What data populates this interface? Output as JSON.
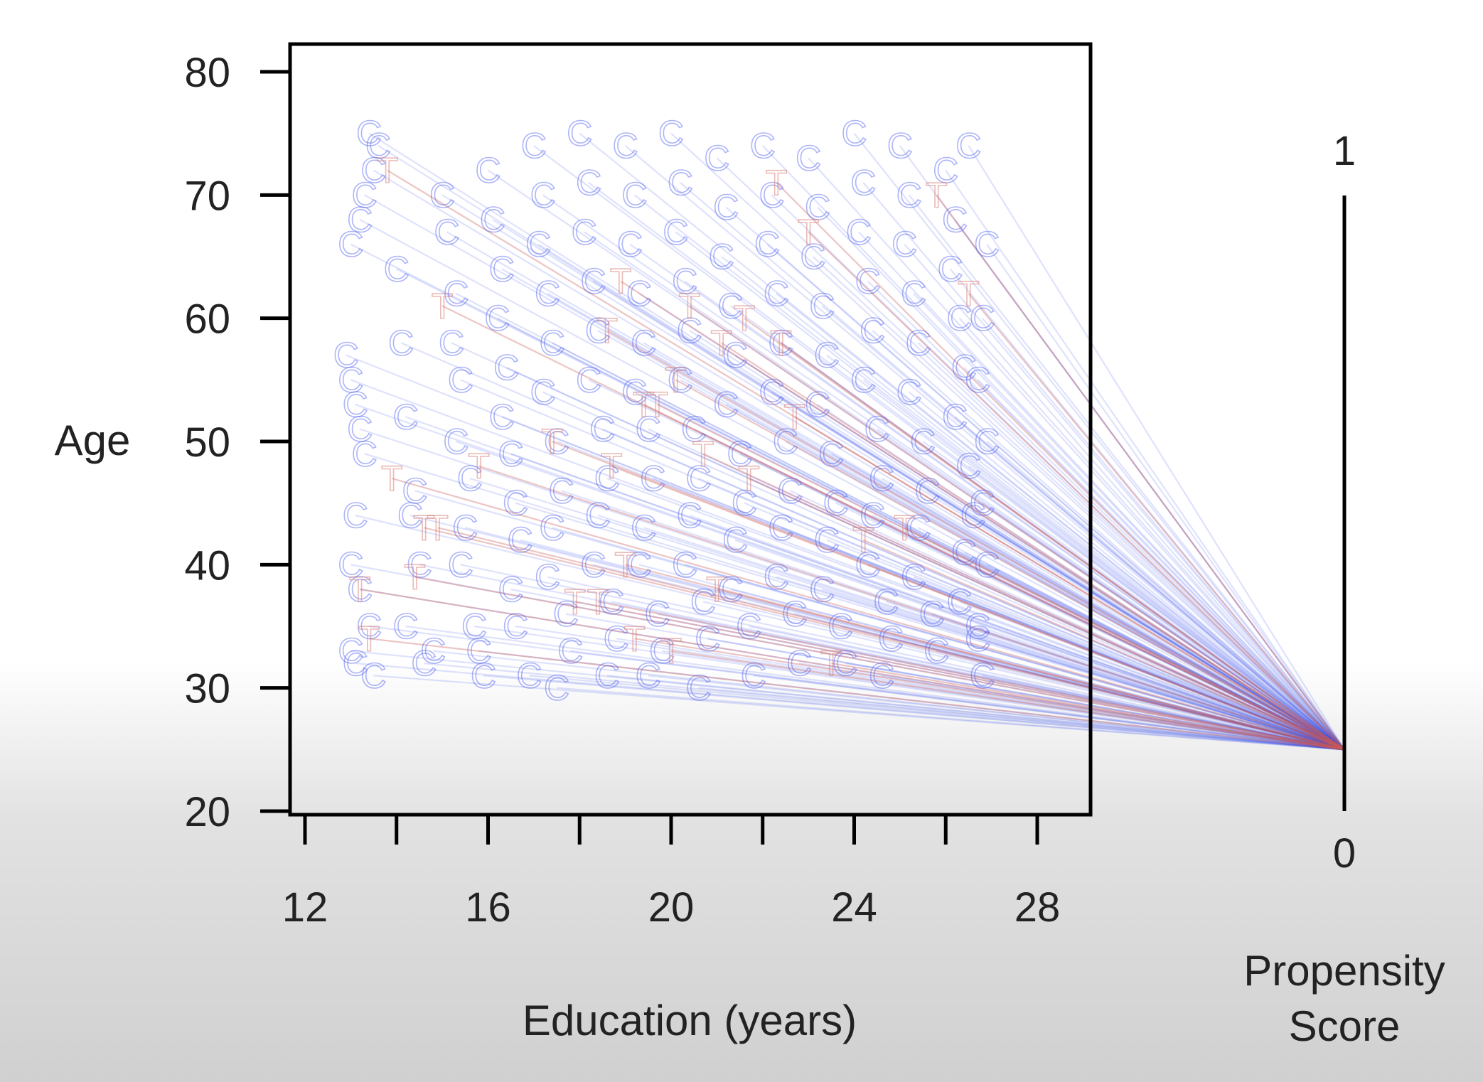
{
  "chart_data": {
    "type": "scatter",
    "title": "",
    "xlabel": "Education (years)",
    "ylabel": "Age",
    "xlim": [
      11.5,
      29.3
    ],
    "ylim": [
      20,
      82
    ],
    "x_ticks": [
      12,
      16,
      20,
      24,
      28
    ],
    "y_ticks": [
      20,
      30,
      40,
      50,
      60,
      70,
      80
    ],
    "grid": false,
    "legend": "none",
    "propensity_axis": {
      "label_lines": [
        "Propensity",
        "Score"
      ],
      "top_label": "1",
      "bottom_label": "0",
      "range": [
        0,
        1
      ]
    },
    "series": [
      {
        "name": "C",
        "marker_letter": "C",
        "color": "#4a5cf0",
        "propensity": 0.1,
        "points": [
          [
            13.4,
            75
          ],
          [
            13.6,
            74
          ],
          [
            13.5,
            72
          ],
          [
            13.3,
            70
          ],
          [
            13.2,
            68
          ],
          [
            13.0,
            66
          ],
          [
            12.9,
            57
          ],
          [
            13.0,
            55
          ],
          [
            13.1,
            53
          ],
          [
            13.2,
            51
          ],
          [
            13.3,
            49
          ],
          [
            13.1,
            44
          ],
          [
            13.0,
            40
          ],
          [
            13.2,
            38
          ],
          [
            13.4,
            35
          ],
          [
            13.0,
            33
          ],
          [
            13.1,
            32
          ],
          [
            13.5,
            31
          ],
          [
            14.0,
            64
          ],
          [
            14.1,
            58
          ],
          [
            14.2,
            52
          ],
          [
            14.4,
            46
          ],
          [
            14.3,
            44
          ],
          [
            14.5,
            40
          ],
          [
            14.2,
            35
          ],
          [
            14.6,
            32
          ],
          [
            14.8,
            33
          ],
          [
            15.0,
            70
          ],
          [
            15.1,
            67
          ],
          [
            15.3,
            62
          ],
          [
            15.2,
            58
          ],
          [
            15.4,
            55
          ],
          [
            15.3,
            50
          ],
          [
            15.6,
            47
          ],
          [
            15.5,
            43
          ],
          [
            15.4,
            40
          ],
          [
            15.7,
            35
          ],
          [
            15.8,
            33
          ],
          [
            15.9,
            31
          ],
          [
            16.0,
            72
          ],
          [
            16.1,
            68
          ],
          [
            16.3,
            64
          ],
          [
            16.2,
            60
          ],
          [
            16.4,
            56
          ],
          [
            16.3,
            52
          ],
          [
            16.5,
            49
          ],
          [
            16.6,
            45
          ],
          [
            16.7,
            42
          ],
          [
            16.5,
            38
          ],
          [
            16.6,
            35
          ],
          [
            16.9,
            31
          ],
          [
            17.0,
            74
          ],
          [
            17.2,
            70
          ],
          [
            17.1,
            66
          ],
          [
            17.3,
            62
          ],
          [
            17.4,
            58
          ],
          [
            17.2,
            54
          ],
          [
            17.5,
            50
          ],
          [
            17.6,
            46
          ],
          [
            17.4,
            43
          ],
          [
            17.3,
            39
          ],
          [
            17.7,
            36
          ],
          [
            17.8,
            33
          ],
          [
            17.5,
            30
          ],
          [
            18.0,
            75
          ],
          [
            18.2,
            71
          ],
          [
            18.1,
            67
          ],
          [
            18.3,
            63
          ],
          [
            18.4,
            59
          ],
          [
            18.2,
            55
          ],
          [
            18.5,
            51
          ],
          [
            18.6,
            47
          ],
          [
            18.4,
            44
          ],
          [
            18.3,
            40
          ],
          [
            18.7,
            37
          ],
          [
            18.8,
            34
          ],
          [
            18.6,
            31
          ],
          [
            19.0,
            74
          ],
          [
            19.2,
            70
          ],
          [
            19.1,
            66
          ],
          [
            19.3,
            62
          ],
          [
            19.4,
            58
          ],
          [
            19.2,
            54
          ],
          [
            19.5,
            51
          ],
          [
            19.6,
            47
          ],
          [
            19.4,
            43
          ],
          [
            19.3,
            40
          ],
          [
            19.7,
            36
          ],
          [
            19.8,
            33
          ],
          [
            19.5,
            31
          ],
          [
            20.0,
            75
          ],
          [
            20.2,
            71
          ],
          [
            20.1,
            67
          ],
          [
            20.3,
            63
          ],
          [
            20.4,
            59
          ],
          [
            20.2,
            55
          ],
          [
            20.5,
            51
          ],
          [
            20.6,
            47
          ],
          [
            20.4,
            44
          ],
          [
            20.3,
            40
          ],
          [
            20.7,
            37
          ],
          [
            20.8,
            34
          ],
          [
            20.6,
            30
          ],
          [
            21.0,
            73
          ],
          [
            21.2,
            69
          ],
          [
            21.1,
            65
          ],
          [
            21.3,
            61
          ],
          [
            21.4,
            57
          ],
          [
            21.2,
            53
          ],
          [
            21.5,
            49
          ],
          [
            21.6,
            45
          ],
          [
            21.4,
            42
          ],
          [
            21.3,
            38
          ],
          [
            21.7,
            35
          ],
          [
            21.8,
            31
          ],
          [
            22.0,
            74
          ],
          [
            22.2,
            70
          ],
          [
            22.1,
            66
          ],
          [
            22.3,
            62
          ],
          [
            22.4,
            58
          ],
          [
            22.2,
            54
          ],
          [
            22.5,
            50
          ],
          [
            22.6,
            46
          ],
          [
            22.4,
            43
          ],
          [
            22.3,
            39
          ],
          [
            22.7,
            36
          ],
          [
            22.8,
            32
          ],
          [
            23.0,
            73
          ],
          [
            23.2,
            69
          ],
          [
            23.1,
            65
          ],
          [
            23.3,
            61
          ],
          [
            23.4,
            57
          ],
          [
            23.2,
            53
          ],
          [
            23.5,
            49
          ],
          [
            23.6,
            45
          ],
          [
            23.4,
            42
          ],
          [
            23.3,
            38
          ],
          [
            23.7,
            35
          ],
          [
            23.8,
            32
          ],
          [
            24.0,
            75
          ],
          [
            24.2,
            71
          ],
          [
            24.1,
            67
          ],
          [
            24.3,
            63
          ],
          [
            24.4,
            59
          ],
          [
            24.2,
            55
          ],
          [
            24.5,
            51
          ],
          [
            24.6,
            47
          ],
          [
            24.4,
            44
          ],
          [
            24.3,
            40
          ],
          [
            24.7,
            37
          ],
          [
            24.8,
            34
          ],
          [
            24.6,
            31
          ],
          [
            25.0,
            74
          ],
          [
            25.2,
            70
          ],
          [
            25.1,
            66
          ],
          [
            25.3,
            62
          ],
          [
            25.4,
            58
          ],
          [
            25.2,
            54
          ],
          [
            25.5,
            50
          ],
          [
            25.6,
            46
          ],
          [
            25.4,
            43
          ],
          [
            25.3,
            39
          ],
          [
            25.7,
            36
          ],
          [
            25.8,
            33
          ],
          [
            26.0,
            72
          ],
          [
            26.2,
            68
          ],
          [
            26.1,
            64
          ],
          [
            26.3,
            60
          ],
          [
            26.4,
            56
          ],
          [
            26.2,
            52
          ],
          [
            26.5,
            48
          ],
          [
            26.6,
            44
          ],
          [
            26.4,
            41
          ],
          [
            26.3,
            37
          ],
          [
            26.7,
            34
          ],
          [
            26.8,
            31
          ],
          [
            26.5,
            74
          ],
          [
            26.9,
            66
          ],
          [
            26.8,
            60
          ],
          [
            26.7,
            55
          ],
          [
            26.9,
            50
          ],
          [
            26.8,
            45
          ],
          [
            26.9,
            40
          ],
          [
            26.7,
            35
          ]
        ]
      },
      {
        "name": "T",
        "marker_letter": "T",
        "color": "#d9827a",
        "propensity": 0.1,
        "points": [
          [
            13.8,
            72
          ],
          [
            15.0,
            61
          ],
          [
            13.9,
            47
          ],
          [
            14.6,
            43
          ],
          [
            14.9,
            43
          ],
          [
            13.2,
            38
          ],
          [
            14.4,
            39
          ],
          [
            13.4,
            34
          ],
          [
            15.8,
            48
          ],
          [
            17.4,
            50
          ],
          [
            17.9,
            37
          ],
          [
            18.4,
            37
          ],
          [
            19.0,
            40
          ],
          [
            19.2,
            34
          ],
          [
            18.6,
            59
          ],
          [
            18.7,
            48
          ],
          [
            19.4,
            53
          ],
          [
            19.7,
            53
          ],
          [
            20.0,
            33
          ],
          [
            20.4,
            61
          ],
          [
            20.7,
            49
          ],
          [
            21.1,
            58
          ],
          [
            21.6,
            60
          ],
          [
            21.7,
            47
          ],
          [
            22.3,
            71
          ],
          [
            22.4,
            58
          ],
          [
            22.7,
            52
          ],
          [
            23.0,
            67
          ],
          [
            23.5,
            32
          ],
          [
            24.2,
            42
          ],
          [
            25.8,
            70
          ],
          [
            26.5,
            62
          ],
          [
            21.0,
            38
          ],
          [
            18.9,
            63
          ],
          [
            20.1,
            55
          ],
          [
            25.1,
            43
          ]
        ]
      }
    ]
  }
}
